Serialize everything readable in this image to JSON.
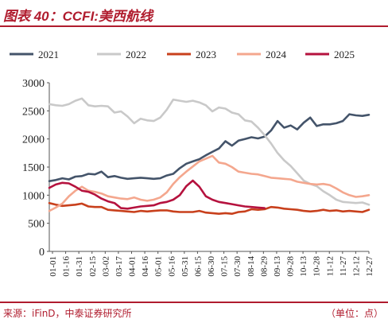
{
  "figure": {
    "title": "图表 40：CCFI:美西航线",
    "source": "来源：iFinD，中泰证券研究所",
    "unit": "（单位：点）"
  },
  "chart_data": {
    "type": "line",
    "title": "",
    "xlabel": "",
    "ylabel": "",
    "ylim": [
      0,
      3000
    ],
    "yticks": [
      0,
      500,
      1000,
      1500,
      2000,
      2500,
      3000
    ],
    "xticks": [
      "01-01",
      "01-16",
      "01-31",
      "02-15",
      "03-02",
      "03-17",
      "04-01",
      "04-16",
      "05-01",
      "05-16",
      "05-31",
      "06-15",
      "06-30",
      "07-15",
      "07-30",
      "08-14",
      "08-29",
      "09-13",
      "09-28",
      "10-13",
      "10-28",
      "11-12",
      "11-27",
      "12-12",
      "12-27"
    ],
    "legend_position": "top",
    "grid": false,
    "series": [
      {
        "name": "2021",
        "color": "#44546a",
        "values": [
          1250,
          1270,
          1300,
          1280,
          1330,
          1340,
          1380,
          1370,
          1420,
          1320,
          1340,
          1310,
          1290,
          1300,
          1310,
          1300,
          1290,
          1300,
          1350,
          1380,
          1480,
          1560,
          1600,
          1640,
          1710,
          1770,
          1830,
          1960,
          1880,
          1970,
          2000,
          2030,
          2010,
          2040,
          2150,
          2320,
          2200,
          2240,
          2170,
          2290,
          2380,
          2230,
          2260,
          2260,
          2280,
          2320,
          2440,
          2420,
          2410,
          2430
        ]
      },
      {
        "name": "2022",
        "color": "#c9c9c9",
        "values": [
          2620,
          2600,
          2590,
          2620,
          2680,
          2720,
          2600,
          2580,
          2590,
          2580,
          2470,
          2490,
          2400,
          2280,
          2360,
          2330,
          2320,
          2380,
          2520,
          2700,
          2680,
          2660,
          2680,
          2650,
          2600,
          2490,
          2560,
          2540,
          2470,
          2440,
          2330,
          2310,
          2200,
          2070,
          1920,
          1750,
          1620,
          1520,
          1390,
          1260,
          1200,
          1160,
          1070,
          1000,
          920,
          880,
          870,
          860,
          870,
          830
        ]
      },
      {
        "name": "2023",
        "color": "#c8401c",
        "values": [
          860,
          830,
          810,
          820,
          830,
          850,
          800,
          790,
          790,
          740,
          730,
          720,
          710,
          700,
          720,
          710,
          720,
          730,
          730,
          710,
          700,
          700,
          700,
          720,
          690,
          680,
          670,
          680,
          670,
          700,
          710,
          750,
          740,
          750,
          790,
          780,
          760,
          750,
          740,
          720,
          710,
          720,
          740,
          720,
          730,
          710,
          720,
          710,
          700,
          740
        ]
      },
      {
        "name": "2024",
        "color": "#f4a78e",
        "values": [
          720,
          780,
          850,
          980,
          1080,
          1150,
          1080,
          1060,
          1030,
          980,
          960,
          940,
          930,
          960,
          920,
          900,
          920,
          960,
          1050,
          1200,
          1320,
          1420,
          1510,
          1600,
          1650,
          1700,
          1580,
          1560,
          1500,
          1420,
          1400,
          1380,
          1370,
          1340,
          1310,
          1300,
          1290,
          1280,
          1240,
          1220,
          1200,
          1190,
          1200,
          1180,
          1120,
          1050,
          1000,
          970,
          980,
          1000
        ]
      },
      {
        "name": "2025",
        "color": "#b5123e",
        "values": [
          1130,
          1190,
          1220,
          1210,
          1150,
          1080,
          1060,
          1010,
          940,
          890,
          860,
          770,
          760,
          780,
          800,
          810,
          820,
          860,
          880,
          920,
          1000,
          1160,
          1260,
          1150,
          980,
          920,
          880,
          860,
          840,
          820,
          800,
          790,
          780,
          770
        ]
      }
    ]
  }
}
